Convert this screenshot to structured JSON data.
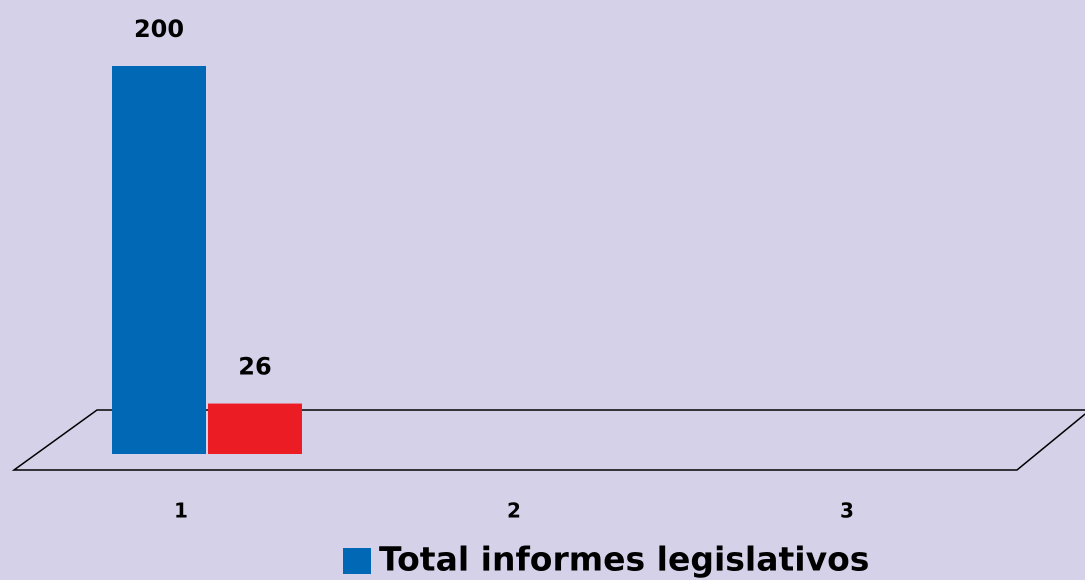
{
  "chart_data": {
    "type": "bar",
    "categories": [
      "1",
      "2",
      "3"
    ],
    "series": [
      {
        "name": "Total informes legislativos",
        "color": "#0068b4",
        "values": [
          200,
          null,
          null
        ]
      },
      {
        "color": "#ec1c24",
        "values": [
          26,
          null,
          null
        ]
      }
    ]
  }
}
